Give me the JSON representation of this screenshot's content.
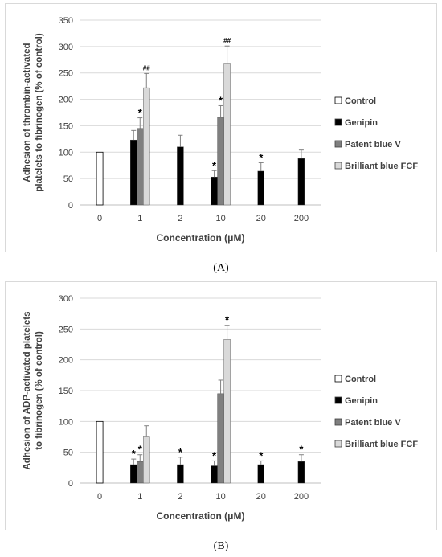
{
  "chart_data": [
    {
      "type": "bar",
      "panel_label": "(A)",
      "ylabel": "Adhesion of thrombin-activated platelets to fibrinogen (% of control)",
      "ylabel_lines": [
        "Adhesion of thrombin-activated",
        "platelets to fibrinogen (% of control)"
      ],
      "xlabel": "Concentration (μM)",
      "categories": [
        "0",
        "1",
        "2",
        "10",
        "20",
        "200"
      ],
      "ylim": [
        0,
        350
      ],
      "yticks": [
        "0",
        "50",
        "100",
        "150",
        "200",
        "250",
        "300",
        "350"
      ],
      "grid": true,
      "legend_position": "right",
      "series": [
        {
          "name": "Control",
          "color": "#ffffff",
          "values": [
            100,
            null,
            null,
            null,
            null,
            null
          ],
          "errors": [
            0,
            null,
            null,
            null,
            null,
            null
          ],
          "marks": [
            "",
            null,
            null,
            null,
            null,
            null
          ]
        },
        {
          "name": "Genipin",
          "color": "#000000",
          "values": [
            null,
            123,
            110,
            53,
            64,
            88
          ],
          "errors": [
            null,
            18,
            22,
            12,
            16,
            16
          ],
          "marks": [
            null,
            "",
            "",
            "*",
            "*",
            ""
          ]
        },
        {
          "name": "Patent blue V",
          "color": "#7f7f7f",
          "values": [
            null,
            145,
            null,
            166,
            null,
            null
          ],
          "errors": [
            null,
            20,
            null,
            22,
            null,
            null
          ],
          "marks": [
            null,
            "*",
            null,
            "*",
            null,
            null
          ]
        },
        {
          "name": "Brilliant blue FCF",
          "color": "#d9d9d9",
          "values": [
            null,
            222,
            null,
            267,
            null,
            null
          ],
          "errors": [
            null,
            27,
            null,
            34,
            null,
            null
          ],
          "marks": [
            null,
            "##",
            null,
            "##",
            null,
            null
          ]
        }
      ]
    },
    {
      "type": "bar",
      "panel_label": "(B)",
      "ylabel": "Adhesion of ADP-activated platelets to fibrinogen (% of control)",
      "ylabel_lines": [
        "Adhesion of ADP-activated platelets",
        "to fibrinogen (% of control)"
      ],
      "xlabel": "Concentration (μM)",
      "categories": [
        "0",
        "1",
        "2",
        "10",
        "20",
        "200"
      ],
      "ylim": [
        0,
        300
      ],
      "yticks": [
        "0",
        "50",
        "100",
        "150",
        "200",
        "250",
        "300"
      ],
      "grid": true,
      "legend_position": "right",
      "series": [
        {
          "name": "Control",
          "color": "#ffffff",
          "values": [
            100,
            null,
            null,
            null,
            null,
            null
          ],
          "errors": [
            0,
            null,
            null,
            null,
            null,
            null
          ],
          "marks": [
            "",
            null,
            null,
            null,
            null,
            null
          ]
        },
        {
          "name": "Genipin",
          "color": "#000000",
          "values": [
            null,
            30,
            30,
            28,
            30,
            35
          ],
          "errors": [
            null,
            9,
            12,
            8,
            6,
            11
          ],
          "marks": [
            null,
            "*",
            "*",
            "*",
            "*",
            "*"
          ]
        },
        {
          "name": "Patent blue V",
          "color": "#7f7f7f",
          "values": [
            null,
            35,
            null,
            145,
            null,
            null
          ],
          "errors": [
            null,
            11,
            null,
            22,
            null,
            null
          ],
          "marks": [
            null,
            "*",
            null,
            "",
            null,
            null
          ]
        },
        {
          "name": "Brilliant blue FCF",
          "color": "#d9d9d9",
          "values": [
            null,
            75,
            null,
            233,
            null,
            null
          ],
          "errors": [
            null,
            18,
            null,
            23,
            null,
            null
          ],
          "marks": [
            null,
            "",
            null,
            "*",
            null,
            null
          ]
        }
      ]
    }
  ]
}
